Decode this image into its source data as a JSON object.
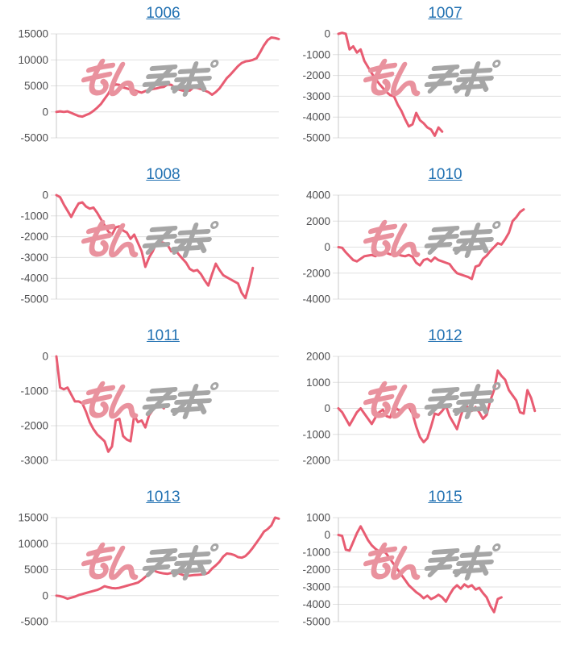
{
  "page": {
    "background": "#ffffff",
    "description_visible_elements": "grid of eight line charts, each titled by a blue underlined numeric link, with a pink series line and a pink/gray watermark overlay"
  },
  "style": {
    "series_line": "#e85c72",
    "title_link": "#2171b2",
    "tick_label": "#4f4f51",
    "gridline": "#e0e0e0",
    "axis_line": "#c8c8c8",
    "watermark_pink": "#e9929e",
    "watermark_gray": "#a6a6a6"
  },
  "watermark": {
    "text": "みんレポ",
    "part_pink": "みん",
    "part_gray": "レポ"
  },
  "layout_hints": {
    "grid": "2 columns x 4 rows",
    "x_slots": 61,
    "legend": "none",
    "x_axis_labels": "none",
    "grid_on": true
  },
  "chart_data": [
    {
      "type": "line",
      "title": "1006",
      "ylim": [
        -5000,
        15000
      ],
      "yticks": [
        15000,
        10000,
        5000,
        0,
        -5000
      ],
      "values": [
        0,
        100,
        0,
        100,
        -200,
        -500,
        -800,
        -900,
        -600,
        -300,
        200,
        800,
        1500,
        2500,
        3500,
        4800,
        5300,
        5200,
        4700,
        4500,
        4300,
        4200,
        3900,
        3700,
        4000,
        4200,
        4400,
        4500,
        4700,
        4800,
        5300,
        5200,
        4600,
        4300,
        4100,
        4000,
        4100,
        4700,
        4600,
        4400,
        4100,
        3800,
        3300,
        3800,
        4500,
        5500,
        6500,
        7200,
        8000,
        8800,
        9400,
        9700,
        9800,
        10000,
        10300,
        11500,
        12800,
        13800,
        14300,
        14200,
        14000
      ]
    },
    {
      "type": "line",
      "title": "1007",
      "ylim": [
        -5000,
        0
      ],
      "yticks": [
        0,
        -1000,
        -2000,
        -3000,
        -4000,
        -5000
      ],
      "values": [
        0,
        50,
        0,
        -750,
        -600,
        -900,
        -750,
        -1300,
        -1600,
        -1900,
        -2150,
        -2400,
        -2600,
        -2800,
        -2950,
        -3000,
        -3400,
        -3700,
        -4100,
        -4450,
        -4350,
        -3800,
        -4150,
        -4300,
        -4500,
        -4600,
        -4900,
        -4500,
        -4700
      ]
    },
    {
      "type": "line",
      "title": "1008",
      "ylim": [
        -5000,
        0
      ],
      "yticks": [
        0,
        -1000,
        -2000,
        -3000,
        -4000,
        -5000
      ],
      "values": [
        0,
        -100,
        -450,
        -750,
        -1050,
        -700,
        -400,
        -350,
        -550,
        -650,
        -600,
        -850,
        -1150,
        -1450,
        -1750,
        -1900,
        -1550,
        -1500,
        -1700,
        -1800,
        -2100,
        -1900,
        -2300,
        -2700,
        -3450,
        -3000,
        -2700,
        -2300,
        -2250,
        -2300,
        -2400,
        -2700,
        -2600,
        -2850,
        -3050,
        -3250,
        -3550,
        -3650,
        -3600,
        -3800,
        -4100,
        -4350,
        -3800,
        -3300,
        -3600,
        -3850,
        -3950,
        -4050,
        -4150,
        -4250,
        -4700,
        -4950,
        -4300,
        -3500
      ]
    },
    {
      "type": "line",
      "title": "1010",
      "ylim": [
        -4000,
        4000
      ],
      "yticks": [
        4000,
        2000,
        0,
        -2000,
        -4000
      ],
      "values": [
        0,
        -50,
        -400,
        -700,
        -1000,
        -1100,
        -900,
        -700,
        -650,
        -600,
        -700,
        -500,
        -400,
        -450,
        -550,
        -600,
        -550,
        -650,
        -700,
        -600,
        -750,
        -1200,
        -1400,
        -1000,
        -900,
        -1100,
        -800,
        -1000,
        -1100,
        -1200,
        -1300,
        -1700,
        -2000,
        -2100,
        -2200,
        -2300,
        -2450,
        -1500,
        -1400,
        -900,
        -650,
        -300,
        0,
        300,
        200,
        600,
        1100,
        2000,
        2300,
        2700,
        2900
      ]
    },
    {
      "type": "line",
      "title": "1011",
      "ylim": [
        -3000,
        0
      ],
      "yticks": [
        0,
        -1000,
        -2000,
        -3000
      ],
      "values": [
        0,
        -900,
        -950,
        -900,
        -1100,
        -1300,
        -1300,
        -1350,
        -1600,
        -1900,
        -2100,
        -2250,
        -2350,
        -2450,
        -2750,
        -2600,
        -1850,
        -1800,
        -2300,
        -2400,
        -2450,
        -1700,
        -1900,
        -1850,
        -2050,
        -1700,
        -1550,
        -1450,
        -1400,
        -1500
      ]
    },
    {
      "type": "line",
      "title": "1012",
      "ylim": [
        -2000,
        2000
      ],
      "yticks": [
        2000,
        1000,
        0,
        -1000,
        -2000
      ],
      "values": [
        0,
        -150,
        -400,
        -650,
        -400,
        -150,
        0,
        -200,
        -400,
        -600,
        -350,
        -150,
        -50,
        -300,
        -350,
        100,
        -50,
        -100,
        100,
        50,
        -200,
        -700,
        -1100,
        -1300,
        -1150,
        -700,
        -200,
        -250,
        -100,
        100,
        -300,
        -550,
        -800,
        -300,
        100,
        50,
        -100,
        50,
        -150,
        -400,
        -250,
        300,
        700,
        1450,
        1250,
        1100,
        700,
        500,
        300,
        -150,
        -200,
        700,
        400,
        -100
      ]
    },
    {
      "type": "line",
      "title": "1013",
      "ylim": [
        -5000,
        15000
      ],
      "yticks": [
        15000,
        10000,
        5000,
        0,
        -5000
      ],
      "values": [
        0,
        -100,
        -300,
        -600,
        -400,
        -200,
        100,
        300,
        500,
        700,
        900,
        1100,
        1400,
        1800,
        1600,
        1450,
        1400,
        1500,
        1700,
        1900,
        2100,
        2300,
        2500,
        3000,
        3600,
        4200,
        5000,
        4600,
        4400,
        4250,
        4200,
        4350,
        4200,
        4300,
        4000,
        3800,
        3850,
        3950,
        4000,
        4050,
        4100,
        4400,
        5200,
        5800,
        6500,
        7500,
        8100,
        8000,
        7800,
        7400,
        7300,
        7600,
        8300,
        9200,
        10200,
        11200,
        12300,
        12800,
        13500,
        15000,
        14800
      ]
    },
    {
      "type": "line",
      "title": "1015",
      "ylim": [
        -5000,
        1000
      ],
      "yticks": [
        1000,
        0,
        -1000,
        -2000,
        -3000,
        -4000,
        -5000
      ],
      "values": [
        0,
        -50,
        -850,
        -900,
        -400,
        100,
        500,
        100,
        -300,
        -600,
        -800,
        -950,
        -850,
        -1100,
        -1400,
        -1700,
        -2000,
        -2300,
        -2600,
        -2900,
        -3100,
        -3300,
        -3450,
        -3650,
        -3500,
        -3700,
        -3600,
        -3450,
        -3600,
        -3850,
        -3450,
        -3100,
        -2900,
        -3100,
        -2850,
        -3000,
        -2900,
        -3150,
        -3050,
        -3350,
        -3600,
        -4100,
        -4450,
        -3700,
        -3600
      ]
    }
  ]
}
